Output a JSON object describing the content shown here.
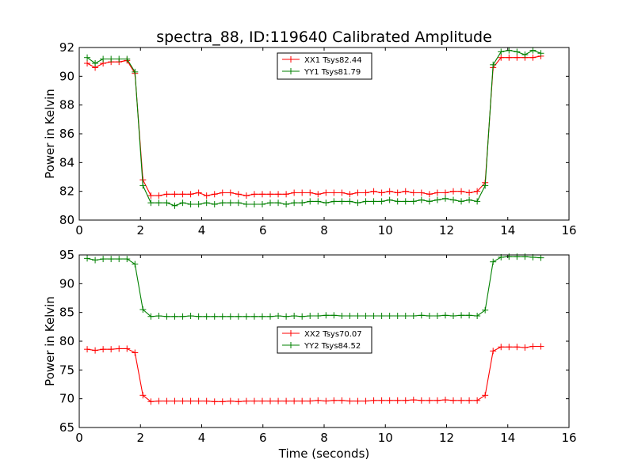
{
  "figure": {
    "title": "spectra_88, ID:119640 Calibrated Amplitude",
    "xlabel": "Time (seconds)"
  },
  "chart_data": [
    {
      "type": "line",
      "title": "spectra_88, ID:119640 Calibrated Amplitude",
      "xlabel": "",
      "ylabel": "Power in Kelvin",
      "xlim": [
        0,
        16
      ],
      "ylim": [
        80,
        92
      ],
      "xticks": [
        0,
        2,
        4,
        6,
        8,
        10,
        12,
        14,
        16
      ],
      "yticks": [
        80,
        82,
        84,
        86,
        88,
        90,
        92
      ],
      "grid": false,
      "legend_position": "top-center",
      "x": [
        0.26,
        0.52,
        0.78,
        1.04,
        1.3,
        1.56,
        1.82,
        2.08,
        2.34,
        2.6,
        2.86,
        3.12,
        3.38,
        3.64,
        3.9,
        4.16,
        4.42,
        4.68,
        4.94,
        5.2,
        5.46,
        5.72,
        5.98,
        6.24,
        6.5,
        6.76,
        7.02,
        7.28,
        7.54,
        7.8,
        8.06,
        8.32,
        8.58,
        8.84,
        9.1,
        9.36,
        9.62,
        9.88,
        10.14,
        10.4,
        10.66,
        10.92,
        11.18,
        11.44,
        11.7,
        11.96,
        12.22,
        12.48,
        12.74,
        13.0,
        13.26,
        13.52,
        13.78,
        14.04,
        14.3,
        14.56,
        14.82,
        15.08
      ],
      "series": [
        {
          "name": "XX1 Tsys82.44",
          "color": "#ff0000",
          "values": [
            90.9,
            90.6,
            90.9,
            91.0,
            91.0,
            91.1,
            90.2,
            82.8,
            81.7,
            81.7,
            81.8,
            81.8,
            81.8,
            81.8,
            81.9,
            81.7,
            81.8,
            81.9,
            81.9,
            81.8,
            81.7,
            81.8,
            81.8,
            81.8,
            81.8,
            81.8,
            81.9,
            81.9,
            81.9,
            81.8,
            81.9,
            81.9,
            81.9,
            81.8,
            81.9,
            81.9,
            82.0,
            81.9,
            82.0,
            81.9,
            82.0,
            81.9,
            81.9,
            81.8,
            81.9,
            81.9,
            82.0,
            82.0,
            81.9,
            82.0,
            82.6,
            90.6,
            91.3,
            91.3,
            91.3,
            91.3,
            91.3,
            91.4
          ]
        },
        {
          "name": "YY1 Tsys81.79",
          "color": "#008000",
          "values": [
            91.3,
            90.9,
            91.2,
            91.2,
            91.2,
            91.2,
            90.3,
            82.4,
            81.2,
            81.2,
            81.2,
            81.0,
            81.2,
            81.1,
            81.1,
            81.2,
            81.1,
            81.2,
            81.2,
            81.2,
            81.1,
            81.1,
            81.1,
            81.2,
            81.2,
            81.1,
            81.2,
            81.2,
            81.3,
            81.3,
            81.2,
            81.3,
            81.3,
            81.3,
            81.2,
            81.3,
            81.3,
            81.3,
            81.4,
            81.3,
            81.3,
            81.3,
            81.4,
            81.3,
            81.4,
            81.5,
            81.4,
            81.3,
            81.4,
            81.3,
            82.4,
            90.8,
            91.7,
            91.8,
            91.7,
            91.5,
            91.8,
            91.6
          ]
        }
      ]
    },
    {
      "type": "line",
      "title": "",
      "xlabel": "Time (seconds)",
      "ylabel": "Power in Kelvin",
      "xlim": [
        0,
        16
      ],
      "ylim": [
        65,
        95
      ],
      "xticks": [
        0,
        2,
        4,
        6,
        8,
        10,
        12,
        14,
        16
      ],
      "yticks": [
        65,
        70,
        75,
        80,
        85,
        90,
        95
      ],
      "grid": false,
      "legend_position": "center",
      "x": [
        0.26,
        0.52,
        0.78,
        1.04,
        1.3,
        1.56,
        1.82,
        2.08,
        2.34,
        2.6,
        2.86,
        3.12,
        3.38,
        3.64,
        3.9,
        4.16,
        4.42,
        4.68,
        4.94,
        5.2,
        5.46,
        5.72,
        5.98,
        6.24,
        6.5,
        6.76,
        7.02,
        7.28,
        7.54,
        7.8,
        8.06,
        8.32,
        8.58,
        8.84,
        9.1,
        9.36,
        9.62,
        9.88,
        10.14,
        10.4,
        10.66,
        10.92,
        11.18,
        11.44,
        11.7,
        11.96,
        12.22,
        12.48,
        12.74,
        13.0,
        13.26,
        13.52,
        13.78,
        14.04,
        14.3,
        14.56,
        14.82,
        15.08
      ],
      "series": [
        {
          "name": "XX2 Tsys70.07",
          "color": "#ff0000",
          "values": [
            78.6,
            78.4,
            78.6,
            78.6,
            78.7,
            78.7,
            78.0,
            70.6,
            69.5,
            69.6,
            69.6,
            69.6,
            69.6,
            69.6,
            69.6,
            69.6,
            69.5,
            69.5,
            69.6,
            69.5,
            69.6,
            69.6,
            69.6,
            69.6,
            69.6,
            69.6,
            69.6,
            69.6,
            69.6,
            69.7,
            69.6,
            69.7,
            69.7,
            69.6,
            69.6,
            69.6,
            69.7,
            69.7,
            69.7,
            69.7,
            69.7,
            69.8,
            69.7,
            69.7,
            69.7,
            69.8,
            69.7,
            69.7,
            69.7,
            69.7,
            70.6,
            78.3,
            79.0,
            79.0,
            79.0,
            78.9,
            79.1,
            79.1
          ]
        },
        {
          "name": "YY2 Tsys84.52",
          "color": "#008000",
          "values": [
            94.4,
            94.1,
            94.3,
            94.3,
            94.3,
            94.3,
            93.4,
            85.5,
            84.3,
            84.4,
            84.3,
            84.3,
            84.3,
            84.4,
            84.3,
            84.3,
            84.3,
            84.3,
            84.3,
            84.3,
            84.3,
            84.3,
            84.3,
            84.3,
            84.4,
            84.3,
            84.4,
            84.3,
            84.4,
            84.4,
            84.5,
            84.5,
            84.4,
            84.4,
            84.4,
            84.4,
            84.4,
            84.4,
            84.4,
            84.4,
            84.4,
            84.4,
            84.5,
            84.4,
            84.4,
            84.5,
            84.4,
            84.5,
            84.5,
            84.4,
            85.4,
            93.8,
            94.6,
            94.7,
            94.7,
            94.7,
            94.6,
            94.5
          ]
        }
      ]
    }
  ]
}
